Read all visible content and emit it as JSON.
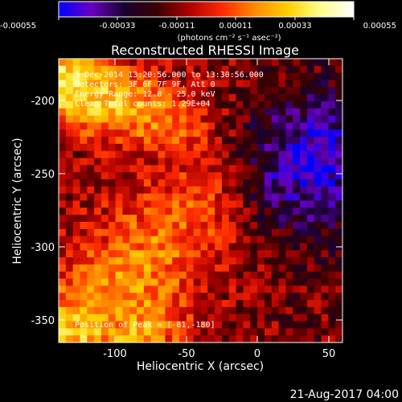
{
  "colorbar": {
    "tick_labels": [
      "-0.00055",
      "-0.00033",
      "-0.00011",
      "0.00011",
      "0.00033",
      "0.00055"
    ],
    "units_label": "(photons cm⁻² s⁻¹ asec⁻²)",
    "colormap": [
      "#0000ff",
      "#6a00c0",
      "#180030",
      "#3a0000",
      "#b00000",
      "#ff2a00",
      "#ff8c00",
      "#ffd000",
      "#ffff90",
      "#ffffff"
    ]
  },
  "plot": {
    "title": "Reconstructed RHESSI Image",
    "x_label": "Heliocentric X (arcsec)",
    "y_label": "Heliocentric Y (arcsec)",
    "x_ticks": [
      "-100",
      "-50",
      "0",
      "50"
    ],
    "y_ticks": [
      "-200",
      "-250",
      "-300",
      "-350"
    ],
    "x_range": [
      -135,
      58
    ],
    "y_range": [
      -372,
      -178
    ]
  },
  "annotations": {
    "time_range": "5-Dec-2014 13:20:56.000 to 13:30:56.000",
    "detectors": "Detectors: 3F 6F 7F 9F, Att 0",
    "energy_range": "Energy Range: 12.0 - 25.0 keV",
    "clean": "Clean     Total counts: 1.29E+04",
    "peak": "Position of Peak = [-81,-180]"
  },
  "footer": {
    "timestamp": "21-Aug-2017 04:00"
  }
}
